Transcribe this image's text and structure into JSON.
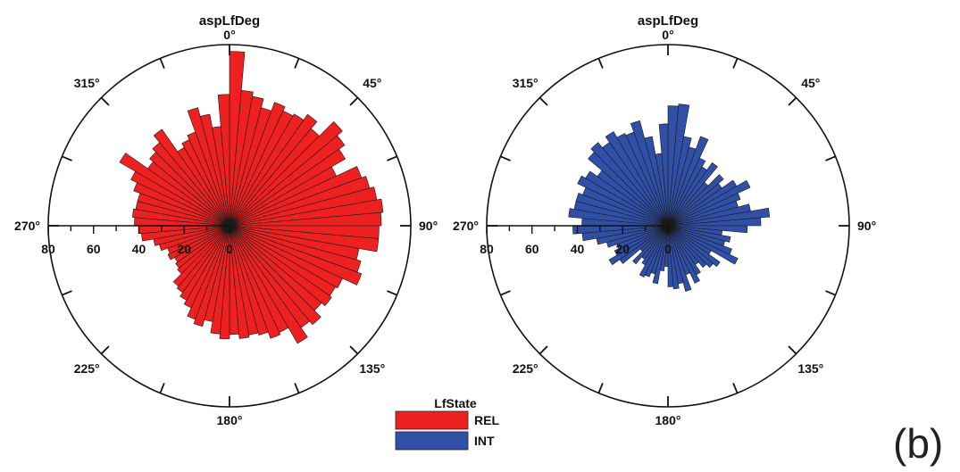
{
  "panel_label": "(b)",
  "legend": {
    "title": "LfState",
    "items": [
      {
        "label": "REL",
        "color": "#ee2020"
      },
      {
        "label": "INT",
        "color": "#3050a8"
      }
    ]
  },
  "chart_data": [
    {
      "type": "polar-bar",
      "title": "aspLfDeg",
      "series_name": "REL",
      "color": "#ee2020",
      "angle_labels": [
        "0°",
        "45°",
        "90°",
        "135°",
        "180°",
        "225°",
        "270°",
        "315°"
      ],
      "radial_ticks": [
        "80",
        "60",
        "40",
        "20",
        "0"
      ],
      "radial_max": 80,
      "bin_width_deg": 5,
      "bin_centers_deg": [
        2.5,
        7.5,
        12.5,
        17.5,
        22.5,
        27.5,
        32.5,
        37.5,
        42.5,
        47.5,
        52.5,
        57.5,
        62.5,
        67.5,
        72.5,
        77.5,
        82.5,
        87.5,
        92.5,
        97.5,
        102.5,
        107.5,
        112.5,
        117.5,
        122.5,
        127.5,
        132.5,
        137.5,
        142.5,
        147.5,
        152.5,
        157.5,
        162.5,
        167.5,
        172.5,
        177.5,
        182.5,
        187.5,
        192.5,
        197.5,
        202.5,
        207.5,
        212.5,
        217.5,
        222.5,
        227.5,
        232.5,
        237.5,
        242.5,
        247.5,
        252.5,
        257.5,
        262.5,
        267.5,
        272.5,
        277.5,
        282.5,
        287.5,
        292.5,
        297.5,
        302.5,
        307.5,
        312.5,
        317.5,
        322.5,
        327.5,
        332.5,
        337.5,
        342.5,
        347.5,
        352.5,
        357.5
      ],
      "values": [
        77,
        60,
        58,
        54,
        58,
        56,
        57,
        60,
        56,
        65,
        62,
        59,
        52,
        62,
        64,
        66,
        68,
        67,
        66,
        66,
        58,
        60,
        62,
        55,
        54,
        55,
        53,
        57,
        55,
        60,
        52,
        53,
        50,
        49,
        50,
        48,
        50,
        48,
        43,
        46,
        44,
        40,
        38,
        36,
        35,
        30,
        29,
        28,
        30,
        29,
        32,
        34,
        39,
        40,
        42,
        43,
        42,
        42,
        45,
        48,
        56,
        44,
        46,
        48,
        52,
        40,
        42,
        44,
        54,
        50,
        44,
        58
      ]
    },
    {
      "type": "polar-bar",
      "title": "aspLfDeg",
      "series_name": "INT",
      "color": "#3050a8",
      "angle_labels": [
        "0°",
        "45°",
        "90°",
        "135°",
        "180°",
        "225°",
        "270°",
        "315°"
      ],
      "radial_ticks": [
        "80",
        "60",
        "40",
        "20",
        "0"
      ],
      "radial_max": 80,
      "bin_width_deg": 5,
      "bin_centers_deg": [
        2.5,
        7.5,
        12.5,
        17.5,
        22.5,
        27.5,
        32.5,
        37.5,
        42.5,
        47.5,
        52.5,
        57.5,
        62.5,
        67.5,
        72.5,
        77.5,
        82.5,
        87.5,
        92.5,
        97.5,
        102.5,
        107.5,
        112.5,
        117.5,
        122.5,
        127.5,
        132.5,
        137.5,
        142.5,
        147.5,
        152.5,
        157.5,
        162.5,
        167.5,
        172.5,
        177.5,
        182.5,
        187.5,
        192.5,
        197.5,
        202.5,
        207.5,
        212.5,
        217.5,
        222.5,
        227.5,
        232.5,
        237.5,
        242.5,
        247.5,
        252.5,
        257.5,
        262.5,
        267.5,
        272.5,
        277.5,
        282.5,
        287.5,
        292.5,
        297.5,
        302.5,
        307.5,
        312.5,
        317.5,
        322.5,
        327.5,
        332.5,
        337.5,
        342.5,
        347.5,
        352.5,
        357.5
      ],
      "values": [
        53,
        54,
        40,
        36,
        42,
        33,
        30,
        34,
        25,
        32,
        29,
        35,
        40,
        34,
        32,
        37,
        45,
        41,
        35,
        24,
        28,
        26,
        30,
        34,
        22,
        28,
        26,
        24,
        21,
        25,
        28,
        23,
        30,
        26,
        28,
        27,
        18,
        20,
        26,
        22,
        24,
        25,
        20,
        18,
        22,
        16,
        26,
        30,
        26,
        24,
        28,
        32,
        38,
        42,
        38,
        44,
        42,
        42,
        40,
        44,
        42,
        38,
        46,
        48,
        45,
        48,
        45,
        44,
        48,
        40,
        32,
        45
      ]
    }
  ]
}
